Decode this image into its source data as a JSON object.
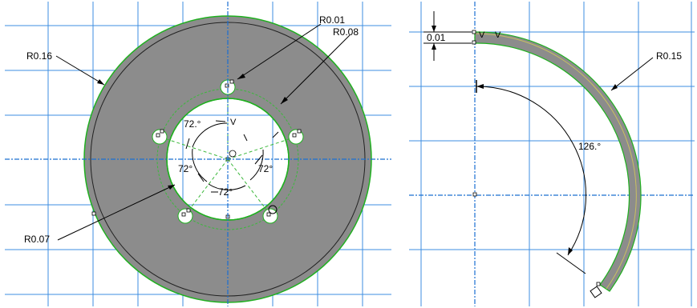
{
  "colors": {
    "grid": "#3d8de0",
    "axis": "#1a6fd1",
    "part_fill": "#8c8c8c",
    "edge_green": "#1fb01f",
    "construction_green": "#3cb83c",
    "dimension": "#000000",
    "background": "#ffffff"
  },
  "left_view": {
    "labels": {
      "r_outer": "R0.16",
      "r_hole_small": "R0.01",
      "r_inner_circle": "R0.08",
      "r_inner_bore": "R0.07"
    },
    "angles": [
      "72.°",
      "72°",
      "72°",
      "72°"
    ],
    "vertex_tick": "V"
  },
  "right_view": {
    "labels": {
      "thickness": "0.01",
      "radius": "R0.15",
      "sweep_angle": "126.°"
    },
    "vertex_ticks": [
      "V",
      "V"
    ]
  }
}
